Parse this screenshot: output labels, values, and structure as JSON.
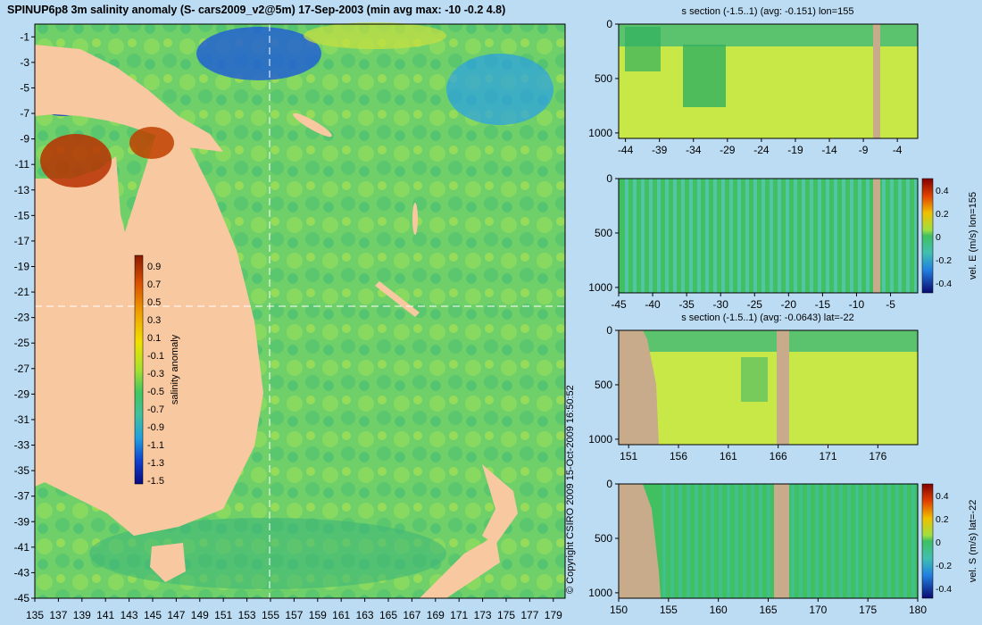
{
  "title": "SPINUP6p8 3m salinity anomaly (S- cars2009_v2@5m) 17-Sep-2003 (min avg max: -10 -0.2 4.8)",
  "copyright": "© Copyright CSIRO 2009   15-Oct-2009 16:50:52",
  "colors": {
    "background": "#bcdcf4",
    "land": "#f8c8a0",
    "ocean_base": "#6fd06a",
    "section_land": "#c8ab8a"
  },
  "chart_data": [
    {
      "type": "heatmap",
      "name": "map",
      "x_ticks": [
        "135",
        "137",
        "139",
        "141",
        "143",
        "145",
        "147",
        "149",
        "151",
        "153",
        "155",
        "157",
        "159",
        "161",
        "163",
        "165",
        "167",
        "169",
        "171",
        "173",
        "175",
        "177",
        "179"
      ],
      "y_ticks": [
        "-1",
        "-3",
        "-5",
        "-7",
        "-9",
        "-11",
        "-13",
        "-15",
        "-17",
        "-19",
        "-21",
        "-23",
        "-25",
        "-27",
        "-29",
        "-31",
        "-33",
        "-35",
        "-37",
        "-39",
        "-41",
        "-43",
        "-45"
      ],
      "xlim": [
        135,
        180
      ],
      "ylim": [
        -45,
        0
      ],
      "crosshair": {
        "lon": 155,
        "lat": -22
      },
      "colorbar": {
        "label": "salinity anomaly",
        "ticks": [
          "0.9",
          "0.7",
          "0.5",
          "0.3",
          "0.1",
          "-0.1",
          "-0.3",
          "-0.5",
          "-0.7",
          "-0.9",
          "-1.1",
          "-1.3",
          "-1.5"
        ]
      }
    },
    {
      "type": "heatmap",
      "name": "s section lon",
      "title": "s section (-1.5..1) (avg: -0.151) lon=155",
      "x_ticks": [
        "-44",
        "-39",
        "-34",
        "-29",
        "-24",
        "-19",
        "-14",
        "-9",
        "-4"
      ],
      "y_ticks": [
        "0",
        "500",
        "1000"
      ],
      "xlim": [
        -45,
        -1
      ],
      "ylim": [
        1050,
        0
      ]
    },
    {
      "type": "heatmap",
      "name": "vel E section",
      "colorbar_label": "vel. E (m/s) lon=155",
      "x_ticks": [
        "-45",
        "-40",
        "-35",
        "-30",
        "-25",
        "-20",
        "-15",
        "-10",
        "-5"
      ],
      "y_ticks": [
        "0",
        "500",
        "1000"
      ],
      "xlim": [
        -45,
        -1
      ],
      "ylim": [
        1050,
        0
      ],
      "colorbar_ticks": [
        "0.4",
        "0.2",
        "0",
        "-0.2",
        "-0.4"
      ]
    },
    {
      "type": "heatmap",
      "name": "s section lat",
      "title": "s section (-1.5..1) (avg: -0.0643) lat=-22",
      "x_ticks": [
        "151",
        "156",
        "161",
        "166",
        "171",
        "176"
      ],
      "y_ticks": [
        "0",
        "500",
        "1000"
      ],
      "xlim": [
        150,
        180
      ],
      "ylim": [
        1050,
        0
      ]
    },
    {
      "type": "heatmap",
      "name": "vel S section",
      "colorbar_label": "vel. S (m/s) lat=-22",
      "x_ticks": [
        "150",
        "155",
        "160",
        "165",
        "170",
        "175",
        "180"
      ],
      "y_ticks": [
        "0",
        "500",
        "1000"
      ],
      "xlim": [
        150,
        180
      ],
      "ylim": [
        1050,
        0
      ],
      "colorbar_ticks": [
        "0.4",
        "0.2",
        "0",
        "-0.2",
        "-0.4"
      ]
    }
  ]
}
